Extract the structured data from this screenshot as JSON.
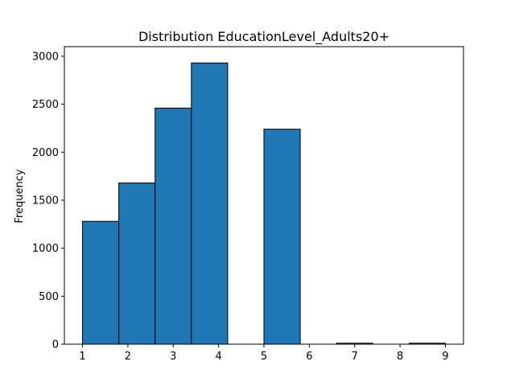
{
  "chart_data": {
    "type": "bar",
    "title": "Distribution EducationLevel_Adults20+",
    "xlabel": "",
    "ylabel": "Frequency",
    "bin_edges": [
      1.0,
      1.8,
      2.6,
      3.4,
      4.2,
      5.0,
      5.8,
      6.6,
      7.4,
      8.2,
      9.0
    ],
    "values": [
      1280,
      1680,
      2460,
      2930,
      0,
      2240,
      0,
      10,
      0,
      10
    ],
    "xlim": [
      0.6,
      9.4
    ],
    "ylim": [
      0,
      3100
    ],
    "xticks": [
      1,
      2,
      3,
      4,
      5,
      6,
      7,
      8,
      9
    ],
    "yticks": [
      0,
      500,
      1000,
      1500,
      2000,
      2500,
      3000
    ],
    "grid": false,
    "bar_color": "#1f77b4",
    "edge_color": "#000000"
  }
}
